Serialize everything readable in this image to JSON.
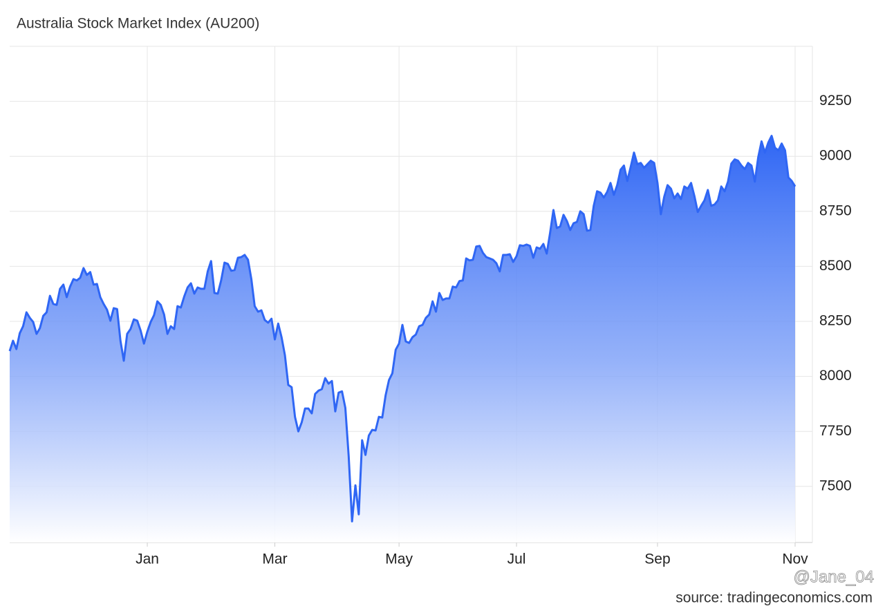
{
  "chart_data": {
    "type": "area",
    "title": "Australia Stock Market Index (AU200)",
    "source": "source: tradingeconomics.com",
    "watermark": "@Jane_04",
    "color": "#2f66f4",
    "grid": true,
    "yaxis_position": "right",
    "ylim": [
      7245,
      9500
    ],
    "yticks": [
      7500,
      7750,
      8000,
      8250,
      8500,
      8750,
      9000,
      9250
    ],
    "categories": [
      null,
      null,
      null,
      null,
      null,
      null,
      null,
      null,
      null,
      null,
      null,
      null,
      null,
      null,
      null,
      null,
      null,
      null,
      null,
      null,
      null,
      null,
      null,
      null,
      null,
      null,
      null,
      null,
      null,
      null,
      null,
      null,
      null,
      null,
      null,
      null,
      null,
      null,
      null,
      null,
      null,
      "Jan",
      null,
      null,
      null,
      null,
      null,
      null,
      null,
      null,
      null,
      null,
      null,
      null,
      null,
      null,
      null,
      null,
      null,
      null,
      null,
      null,
      null,
      null,
      null,
      null,
      null,
      null,
      null,
      null,
      null,
      null,
      null,
      null,
      null,
      null,
      null,
      null,
      null,
      "Mar",
      null,
      null,
      null,
      null,
      null,
      null,
      null,
      null,
      null,
      null,
      null,
      null,
      null,
      null,
      null,
      null,
      null,
      null,
      null,
      null,
      null,
      null,
      null,
      null,
      null,
      null,
      null,
      null,
      null,
      null,
      null,
      null,
      null,
      null,
      null,
      null,
      "May",
      null,
      null,
      null,
      null,
      null,
      null,
      null,
      null,
      null,
      null,
      null,
      null,
      null,
      null,
      null,
      null,
      null,
      null,
      null,
      null,
      null,
      null,
      null,
      null,
      null,
      null,
      null,
      null,
      null,
      null,
      null,
      null,
      null,
      null,
      "Jul",
      null,
      null,
      null,
      null,
      null,
      null,
      null,
      null,
      null,
      null,
      null,
      null,
      null,
      null,
      null,
      null,
      null,
      null,
      null,
      null,
      null,
      null,
      null,
      null,
      null,
      null,
      null,
      null,
      null,
      null,
      null,
      null,
      null,
      null,
      null,
      null,
      null,
      null,
      null,
      null,
      null,
      "Sep",
      null,
      null,
      null,
      null,
      null,
      null,
      null,
      null,
      null,
      null,
      null,
      null,
      null,
      null,
      null,
      null,
      null,
      null,
      null,
      null,
      null,
      null,
      null,
      null,
      null,
      null,
      null,
      null,
      null,
      null,
      null,
      null,
      null,
      null,
      null,
      null,
      null,
      null,
      null,
      null,
      "Nov"
    ],
    "values": [
      8115,
      8162,
      8124,
      8196,
      8228,
      8291,
      8266,
      8247,
      8193,
      8219,
      8275,
      8291,
      8366,
      8329,
      8325,
      8398,
      8417,
      8360,
      8408,
      8442,
      8436,
      8448,
      8492,
      8461,
      8474,
      8417,
      8420,
      8360,
      8329,
      8303,
      8253,
      8310,
      8306,
      8162,
      8071,
      8193,
      8215,
      8259,
      8253,
      8209,
      8149,
      8203,
      8247,
      8278,
      8341,
      8325,
      8281,
      8193,
      8228,
      8215,
      8319,
      8313,
      8363,
      8404,
      8423,
      8376,
      8404,
      8398,
      8398,
      8477,
      8524,
      8379,
      8376,
      8436,
      8517,
      8511,
      8480,
      8483,
      8539,
      8542,
      8552,
      8530,
      8442,
      8319,
      8294,
      8300,
      8256,
      8244,
      8262,
      8168,
      8240,
      8178,
      8096,
      7961,
      7951,
      7816,
      7750,
      7791,
      7854,
      7854,
      7832,
      7920,
      7935,
      7942,
      7992,
      7967,
      7979,
      7841,
      7926,
      7932,
      7857,
      7637,
      7341,
      7505,
      7373,
      7710,
      7643,
      7731,
      7757,
      7754,
      7816,
      7813,
      7914,
      7983,
      8014,
      8121,
      8149,
      8234,
      8159,
      8152,
      8178,
      8190,
      8228,
      8234,
      8266,
      8281,
      8341,
      8294,
      8379,
      8347,
      8354,
      8354,
      8408,
      8404,
      8433,
      8436,
      8536,
      8527,
      8530,
      8590,
      8593,
      8561,
      8542,
      8536,
      8530,
      8514,
      8477,
      8552,
      8552,
      8555,
      8520,
      8546,
      8596,
      8593,
      8599,
      8593,
      8539,
      8586,
      8580,
      8602,
      8558,
      8652,
      8756,
      8674,
      8681,
      8734,
      8706,
      8665,
      8696,
      8702,
      8750,
      8737,
      8662,
      8665,
      8775,
      8841,
      8835,
      8813,
      8838,
      8879,
      8825,
      8869,
      8939,
      8958,
      8888,
      8951,
      9017,
      8964,
      8970,
      8948,
      8964,
      8980,
      8970,
      8879,
      8737,
      8816,
      8869,
      8853,
      8809,
      8831,
      8806,
      8863,
      8853,
      8879,
      8819,
      8747,
      8775,
      8800,
      8847,
      8775,
      8781,
      8800,
      8863,
      8841,
      8885,
      8967,
      8986,
      8980,
      8958,
      8942,
      8970,
      8958,
      8885,
      8995,
      9068,
      9017,
      9062,
      9093,
      9039,
      9027,
      9058,
      9027,
      8904,
      8888,
      8863
    ]
  }
}
